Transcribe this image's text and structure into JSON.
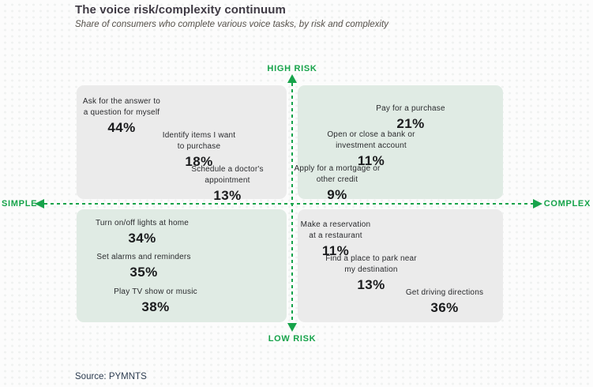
{
  "header": {
    "title": "The voice risk/complexity continuum",
    "subtitle": "Share of consumers who complete various voice tasks, by risk and complexity"
  },
  "footer": {
    "source": "Source: PYMNTS"
  },
  "colors": {
    "accent_green": "#16a34a",
    "quadrant_gray": "#ebebeb",
    "quadrant_green": "#e0ebe4"
  },
  "chart_data": {
    "type": "scatter",
    "variant": "quadrant-matrix",
    "title": "The voice risk/complexity continuum",
    "subtitle": "Share of consumers who complete various voice tasks, by risk and complexity",
    "axis_labels": {
      "top": "HIGH RISK",
      "bottom": "LOW RISK",
      "left": "SIMPLE",
      "right": "COMPLEX"
    },
    "grid": "dashed green crosshair axes, four rounded quadrant panels",
    "quadrants": [
      {
        "name": "high-risk-simple",
        "position": "top-left",
        "fill": "gray",
        "items": [
          {
            "label": "Ask for the answer to\na question for myself",
            "value": "44%"
          },
          {
            "label": "Identify items I want\nto purchase",
            "value": "18%"
          },
          {
            "label": "Schedule a doctor's\nappointment",
            "value": "13%"
          }
        ]
      },
      {
        "name": "high-risk-complex",
        "position": "top-right",
        "fill": "green",
        "items": [
          {
            "label": "Pay for a purchase",
            "value": "21%"
          },
          {
            "label": "Open or close a bank or\ninvestment account",
            "value": "11%"
          },
          {
            "label": "Apply for a mortgage or\nother credit",
            "value": "9%"
          }
        ]
      },
      {
        "name": "low-risk-simple",
        "position": "bottom-left",
        "fill": "green",
        "items": [
          {
            "label": "Turn on/off lights at home",
            "value": "34%"
          },
          {
            "label": "Set alarms and reminders",
            "value": "35%"
          },
          {
            "label": "Play TV show or music",
            "value": "38%"
          }
        ]
      },
      {
        "name": "low-risk-complex",
        "position": "bottom-right",
        "fill": "gray",
        "items": [
          {
            "label": "Make a reservation\nat a restaurant",
            "value": "11%"
          },
          {
            "label": "Find a place to park near\nmy destination",
            "value": "13%"
          },
          {
            "label": "Get driving directions",
            "value": "36%"
          }
        ]
      }
    ],
    "source": "Source: PYMNTS"
  }
}
